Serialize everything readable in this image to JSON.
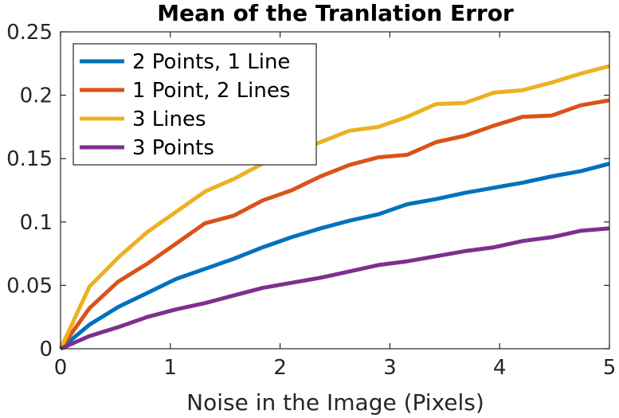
{
  "chart_data": {
    "type": "line",
    "title": "Mean of the Tranlation Error",
    "xlabel": "Noise in the Image (Pixels)",
    "ylabel": "",
    "xlim": [
      0,
      5
    ],
    "ylim": [
      0,
      0.25
    ],
    "xticks": [
      0,
      1,
      2,
      3,
      4,
      5
    ],
    "xtick_labels": [
      "0",
      "1",
      "2",
      "3",
      "4",
      "5"
    ],
    "yticks": [
      0,
      0.05,
      0.1,
      0.15,
      0.2,
      0.25
    ],
    "ytick_labels": [
      "0",
      "0.05",
      "0.1",
      "0.15",
      "0.2",
      "0.25"
    ],
    "grid": false,
    "legend_position": "top-left",
    "x": [
      0,
      0.2632,
      0.5263,
      0.7895,
      1.0526,
      1.3158,
      1.5789,
      1.8421,
      2.1053,
      2.3684,
      2.6316,
      2.8947,
      3.1579,
      3.4211,
      3.6842,
      3.9474,
      4.2105,
      4.4737,
      4.7368,
      5.0
    ],
    "series": [
      {
        "name": "2 Points, 1 Line",
        "color": "#0072BD",
        "values": [
          0,
          0.019,
          0.033,
          0.044,
          0.055,
          0.063,
          0.071,
          0.08,
          0.088,
          0.095,
          0.101,
          0.106,
          0.114,
          0.118,
          0.123,
          0.127,
          0.131,
          0.136,
          0.14,
          0.146
        ]
      },
      {
        "name": "1 Point, 2 Lines",
        "color": "#D95319",
        "values": [
          0,
          0.032,
          0.053,
          0.067,
          0.083,
          0.099,
          0.105,
          0.117,
          0.125,
          0.136,
          0.145,
          0.151,
          0.153,
          0.163,
          0.168,
          0.176,
          0.183,
          0.184,
          0.192,
          0.196
        ]
      },
      {
        "name": "3 Lines",
        "color": "#EDB120",
        "values": [
          0,
          0.049,
          0.072,
          0.092,
          0.108,
          0.124,
          0.134,
          0.146,
          0.155,
          0.163,
          0.172,
          0.175,
          0.183,
          0.193,
          0.194,
          0.202,
          0.204,
          0.21,
          0.217,
          0.223
        ]
      },
      {
        "name": "3 Points",
        "color": "#7E2F8E",
        "values": [
          0,
          0.01,
          0.017,
          0.025,
          0.031,
          0.036,
          0.042,
          0.048,
          0.052,
          0.056,
          0.061,
          0.066,
          0.069,
          0.073,
          0.077,
          0.08,
          0.085,
          0.088,
          0.093,
          0.095
        ]
      }
    ]
  }
}
